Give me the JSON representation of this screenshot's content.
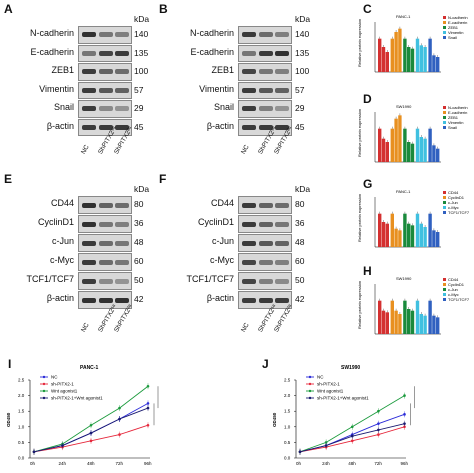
{
  "colors": {
    "NC": "#2b2bd8",
    "shPITX2": "#e6283c",
    "Wnt": "#1a9a3c",
    "combo": "#1a1a70",
    "bar5": "#46b4e0",
    "bar1": "#d43030",
    "bar2": "#e89020",
    "bar3": "#1a8a3c",
    "bar4": "#40c0e0",
    "bar6": "#3060c0"
  },
  "panels": {
    "A": {
      "letter": "A",
      "rows": [
        "N-cadherin",
        "E-cadherin",
        "ZEB1",
        "Vimentin",
        "Snail",
        "β-actin"
      ],
      "kda": [
        "140",
        "135",
        "100",
        "57",
        "29",
        "45"
      ],
      "lanes": [
        "NC",
        "ShPITX2¹ᵃ",
        "ShPITX2²ᵃ"
      ],
      "kda_title": "kDa"
    },
    "B": {
      "letter": "B",
      "rows": [
        "N-cadherin",
        "E-cadherin",
        "ZEB1",
        "Vimentin",
        "Snail",
        "β-actin"
      ],
      "kda": [
        "140",
        "135",
        "100",
        "57",
        "29",
        "45"
      ],
      "lanes": [
        "NC",
        "ShPITX2¹ᵃ",
        "ShPITX2²ᵃ"
      ],
      "kda_title": "kDa"
    },
    "E": {
      "letter": "E",
      "rows": [
        "CD44",
        "CyclinD1",
        "c-Jun",
        "c-Myc",
        "TCF1/TCF7",
        "β-actin"
      ],
      "kda": [
        "80",
        "36",
        "48",
        "60",
        "50",
        "42"
      ],
      "lanes": [
        "NC",
        "ShPITX2¹ᵃ",
        "ShPITX2²ᵃ"
      ],
      "kda_title": "kDa"
    },
    "F": {
      "letter": "F",
      "rows": [
        "CD44",
        "CyclinD1",
        "c-Jun",
        "c-Myc",
        "TCF1/TCF7",
        "β-actin"
      ],
      "kda": [
        "80",
        "36",
        "48",
        "60",
        "50",
        "42"
      ],
      "lanes": [
        "NC",
        "ShPITX2¹ᵃ",
        "ShPITX2²ᵃ"
      ],
      "kda_title": "kDa"
    }
  },
  "bar_panels": {
    "C": {
      "letter": "C",
      "title": "PANC-1",
      "ylabel": "Relative protein expression",
      "legend": [
        "N-cadherin",
        "E-cadherin",
        "ZEB1",
        "Vimentin",
        "Snail"
      ],
      "groups": [
        [
          1.0,
          0.75,
          0.6
        ],
        [
          1.0,
          1.2,
          1.3
        ],
        [
          1.0,
          0.75,
          0.7
        ],
        [
          1.0,
          0.8,
          0.75
        ],
        [
          1.0,
          0.5,
          0.45
        ]
      ],
      "ylim": [
        0,
        1.5
      ]
    },
    "D": {
      "letter": "D",
      "title": "SW1990",
      "ylabel": "Relative protein expression",
      "legend": [
        "N-cadherin",
        "E-cadherin",
        "ZEB1",
        "Vimentin",
        "Snail"
      ],
      "groups": [
        [
          1.0,
          0.7,
          0.6
        ],
        [
          1.0,
          1.3,
          1.4
        ],
        [
          1.0,
          0.6,
          0.55
        ],
        [
          1.0,
          0.75,
          0.7
        ],
        [
          1.0,
          0.5,
          0.4
        ]
      ],
      "ylim": [
        0,
        1.5
      ]
    },
    "G": {
      "letter": "G",
      "title": "PANC-1",
      "ylabel": "Relative protein expression",
      "legend": [
        "CD44",
        "CyclinD1",
        "c-Jun",
        "c-Myc",
        "TCF1/TCF7"
      ],
      "groups": [
        [
          1.0,
          0.75,
          0.7
        ],
        [
          1.0,
          0.55,
          0.5
        ],
        [
          1.0,
          0.7,
          0.65
        ],
        [
          1.0,
          0.7,
          0.6
        ],
        [
          1.0,
          0.5,
          0.45
        ]
      ],
      "ylim": [
        0,
        1.5
      ]
    },
    "H": {
      "letter": "H",
      "title": "SW1990",
      "ylabel": "Relative protein expression",
      "legend": [
        "CD44",
        "CyclinD1",
        "c-Jun",
        "c-Myc",
        "TCF1/TCF7"
      ],
      "groups": [
        [
          1.0,
          0.7,
          0.65
        ],
        [
          1.0,
          0.7,
          0.6
        ],
        [
          1.0,
          0.75,
          0.7
        ],
        [
          1.0,
          0.6,
          0.55
        ],
        [
          1.0,
          0.55,
          0.5
        ]
      ],
      "ylim": [
        0,
        1.5
      ]
    }
  },
  "chart_data": [
    {
      "type": "line",
      "letter": "I",
      "title": "PANC-1",
      "ylabel": "OD450",
      "x": [
        "0h",
        "24h",
        "48h",
        "72h",
        "96h"
      ],
      "ylim": [
        0,
        2.5
      ],
      "yticks": [
        0,
        0.5,
        1.0,
        1.5,
        2.0,
        2.5
      ],
      "series": [
        {
          "name": "NC",
          "values": [
            0.2,
            0.4,
            0.8,
            1.25,
            1.75
          ]
        },
        {
          "name": "sh-PITX2-1",
          "values": [
            0.2,
            0.35,
            0.55,
            0.75,
            1.05
          ]
        },
        {
          "name": "Wnt agonist1",
          "values": [
            0.2,
            0.45,
            1.05,
            1.6,
            2.3
          ]
        },
        {
          "name": "sh-PITX2-1+Wnt agonist1",
          "values": [
            0.2,
            0.4,
            0.8,
            1.25,
            1.6
          ]
        }
      ]
    },
    {
      "type": "line",
      "letter": "J",
      "title": "SW1990",
      "ylabel": "OD450",
      "x": [
        "0h",
        "24h",
        "48h",
        "72h",
        "96h"
      ],
      "ylim": [
        0,
        2.5
      ],
      "yticks": [
        0,
        0.5,
        1.0,
        1.5,
        2.0,
        2.5
      ],
      "series": [
        {
          "name": "NC",
          "values": [
            0.2,
            0.4,
            0.75,
            1.1,
            1.4
          ]
        },
        {
          "name": "sh-PITX2-1",
          "values": [
            0.2,
            0.35,
            0.55,
            0.75,
            1.0
          ]
        },
        {
          "name": "Wnt agonist1",
          "values": [
            0.2,
            0.5,
            1.0,
            1.5,
            2.0
          ]
        },
        {
          "name": "sh-PITX2-1+Wnt agonist1",
          "values": [
            0.2,
            0.4,
            0.7,
            0.9,
            1.1
          ]
        }
      ]
    }
  ]
}
